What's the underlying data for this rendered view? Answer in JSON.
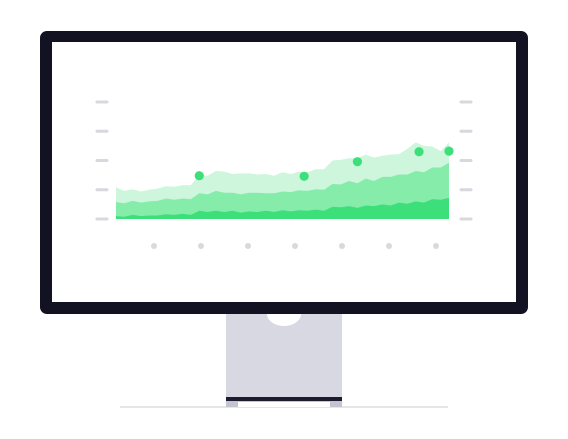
{
  "colors": {
    "background": "#ffffff",
    "bezel": "#121222",
    "screen": "#ffffff",
    "stand": "#d8d8e3",
    "stand_band": "#1c1c2e",
    "stand_foot": "#c4c4d1",
    "floor_line": "#dedee3",
    "tick_mark": "#d8d8de",
    "series_light": "#cdf6dc",
    "series_mid": "#86ecaa",
    "series_dark": "#3ddf7b",
    "marker": "#3ddf7b"
  },
  "icons": {
    "monitor": "monitor-icon",
    "camera_notch": "camera-notch-icon"
  },
  "chart_data": {
    "type": "area",
    "stacked": true,
    "x": [
      0,
      0.5,
      1,
      1.5,
      2,
      2.5,
      3,
      3.5,
      4,
      4.5,
      5,
      5.5,
      6,
      6.5,
      7,
      7.5,
      8,
      8.5,
      9,
      9.5,
      10,
      10.5,
      11,
      11.5,
      12,
      12.5,
      13,
      13.5,
      14,
      14.5,
      15,
      15.5,
      16,
      16.5,
      17,
      17.5,
      18,
      18.5,
      19,
      19.5,
      20
    ],
    "series": [
      {
        "values": [
          0.5,
          0.4,
          0.7,
          0.5,
          0.6,
          0.6,
          0.8,
          0.7,
          0.9,
          0.7,
          1.4,
          1.2,
          1.4,
          1.2,
          1.4,
          1.1,
          1.3,
          1.2,
          1.4,
          1.2,
          1.5,
          1.3,
          1.5,
          1.4,
          1.6,
          1.4,
          2.1,
          2.0,
          2.2,
          1.9,
          2.3,
          2.2,
          2.5,
          2.3,
          2.8,
          2.6,
          3.0,
          2.8,
          3.4,
          3.3,
          3.6
        ]
      },
      {
        "values": [
          2.4,
          2.3,
          2.4,
          2.3,
          2.4,
          2.5,
          2.7,
          2.6,
          2.6,
          2.7,
          3.0,
          3.0,
          3.4,
          3.3,
          3.1,
          3.1,
          3.2,
          3.3,
          3.0,
          3.2,
          3.2,
          3.3,
          3.4,
          3.4,
          3.5,
          3.6,
          3.9,
          3.9,
          4.3,
          4.2,
          4.6,
          4.3,
          4.7,
          4.9,
          4.8,
          5.0,
          5.2,
          5.2,
          5.4,
          5.5,
          6.0
        ]
      },
      {
        "values": [
          2.5,
          2.1,
          2.0,
          1.9,
          2.0,
          2.1,
          2.1,
          2.2,
          2.3,
          2.4,
          3.1,
          3.2,
          3.4,
          3.6,
          3.2,
          3.6,
          3.3,
          3.1,
          3.3,
          3.0,
          3.3,
          3.1,
          3.2,
          3.2,
          3.4,
          3.5,
          4.0,
          4.2,
          3.9,
          4.3,
          4.1,
          4.0,
          3.6,
          3.8,
          3.5,
          4.4,
          4.9,
          4.5,
          3.6,
          2.8,
          3.5
        ]
      }
    ],
    "markers": [
      {
        "x": 5,
        "y": 7.4
      },
      {
        "x": 11.3,
        "y": 7.3
      },
      {
        "x": 14.5,
        "y": 9.8
      },
      {
        "x": 18.2,
        "y": 11.5
      },
      {
        "x": 20,
        "y": 11.6
      }
    ],
    "ylim": [
      0,
      20
    ],
    "xlim": [
      0,
      20
    ],
    "y_ticks": 5,
    "x_ticks": 7,
    "tick_style": "blank-placeholders"
  }
}
